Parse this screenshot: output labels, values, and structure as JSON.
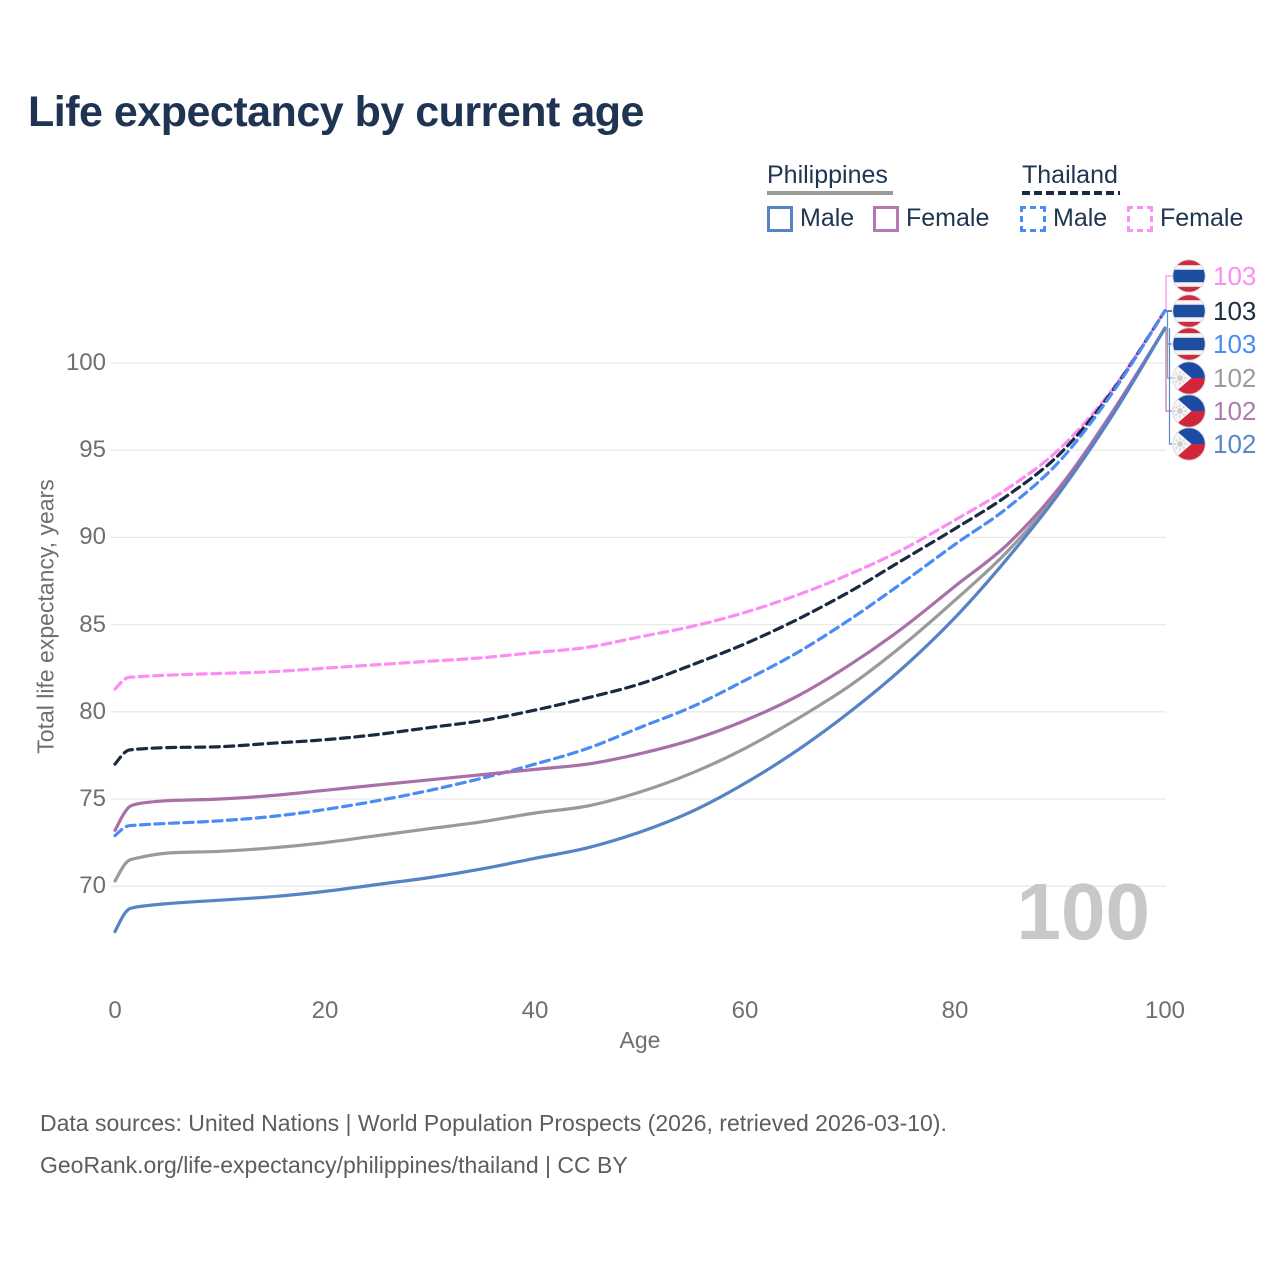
{
  "title": "Life expectancy by current age",
  "legend": {
    "philippines": {
      "label": "Philippines",
      "male": "Male",
      "female": "Female",
      "line_color": "#9a9a9a"
    },
    "thailand": {
      "label": "Thailand",
      "male": "Male",
      "female": "Female",
      "line_color": "#1b2a44"
    }
  },
  "axes": {
    "x": {
      "label": "Age",
      "ticks": [
        "0",
        "20",
        "40",
        "60",
        "80",
        "100"
      ]
    },
    "y": {
      "label": "Total life expectancy, years",
      "ticks": [
        "70",
        "75",
        "80",
        "85",
        "90",
        "95",
        "100"
      ]
    }
  },
  "watermark_age": "100",
  "end_labels": [
    {
      "value": "103",
      "country": "thailand",
      "series": "Thailand Female",
      "color": "#fb8df3"
    },
    {
      "value": "103",
      "country": "thailand",
      "series": "Thailand Both",
      "color": "#1e2c44"
    },
    {
      "value": "103",
      "country": "thailand",
      "series": "Thailand Male",
      "color": "#4a8cf3"
    },
    {
      "value": "102",
      "country": "philippines",
      "series": "Philippines Both",
      "color": "#9b9b9b"
    },
    {
      "value": "102",
      "country": "philippines",
      "series": "Philippines Female",
      "color": "#b07ab3"
    },
    {
      "value": "102",
      "country": "philippines",
      "series": "Philippines Male",
      "color": "#5b87c9"
    }
  ],
  "footer": {
    "line1": "Data sources: United Nations | World Population Prospects (2026, retrieved 2026-03-10).",
    "line2": "GeoRank.org/life-expectancy/philippines/thailand | CC BY"
  },
  "colors": {
    "title": "#1e3452",
    "tick_text": "#6f6f6f",
    "gridline": "#e9e9e9",
    "watermark": "#c9c7c7"
  },
  "chart_data": {
    "type": "line",
    "title": "Life expectancy by current age",
    "xlabel": "Age",
    "ylabel": "Total life expectancy, years",
    "xlim": [
      0,
      100
    ],
    "ylim": [
      66,
      104
    ],
    "grid": "horizontal-only",
    "legend_position": "top-right",
    "x": [
      0,
      1,
      2,
      5,
      10,
      15,
      20,
      25,
      30,
      35,
      40,
      45,
      50,
      55,
      60,
      65,
      70,
      75,
      80,
      85,
      90,
      95,
      100
    ],
    "series": [
      {
        "id": "thailand-female",
        "name": "Thailand Female",
        "country": "Thailand",
        "sex": "female",
        "color": "#fb8df3",
        "dashed": true,
        "values": [
          81.3,
          81.9,
          82.0,
          82.1,
          82.2,
          82.3,
          82.5,
          82.7,
          82.9,
          83.1,
          83.4,
          83.7,
          84.3,
          84.9,
          85.7,
          86.7,
          87.9,
          89.3,
          91.0,
          92.8,
          95.1,
          98.5,
          103
        ]
      },
      {
        "id": "thailand-both",
        "name": "Thailand Both sexes",
        "country": "Thailand",
        "sex": "both",
        "color": "#1b2a44",
        "dashed": true,
        "values": [
          77.0,
          77.7,
          77.85,
          77.95,
          78.0,
          78.2,
          78.4,
          78.7,
          79.1,
          79.5,
          80.1,
          80.8,
          81.6,
          82.7,
          83.9,
          85.3,
          86.9,
          88.7,
          90.5,
          92.4,
          94.8,
          98.4,
          103
        ]
      },
      {
        "id": "thailand-male",
        "name": "Thailand Male",
        "country": "Thailand",
        "sex": "male",
        "color": "#4a8cf3",
        "dashed": true,
        "values": [
          72.9,
          73.4,
          73.5,
          73.6,
          73.75,
          74.0,
          74.4,
          74.9,
          75.5,
          76.2,
          77.0,
          77.9,
          79.1,
          80.3,
          81.8,
          83.4,
          85.3,
          87.4,
          89.6,
          91.7,
          94.4,
          98.3,
          103
        ]
      },
      {
        "id": "philippines-both",
        "name": "Philippines Both sexes",
        "country": "Philippines",
        "sex": "both",
        "color": "#9a9a9a",
        "dashed": false,
        "values": [
          70.3,
          71.3,
          71.6,
          71.9,
          72.0,
          72.2,
          72.5,
          72.9,
          73.3,
          73.7,
          74.2,
          74.6,
          75.4,
          76.5,
          77.9,
          79.6,
          81.5,
          83.8,
          86.4,
          89.2,
          92.7,
          97.1,
          102
        ]
      },
      {
        "id": "philippines-female",
        "name": "Philippines Female",
        "country": "Philippines",
        "sex": "female",
        "color": "#a96fa9",
        "dashed": false,
        "values": [
          73.2,
          74.3,
          74.7,
          74.9,
          75.0,
          75.2,
          75.5,
          75.8,
          76.1,
          76.4,
          76.7,
          77.0,
          77.6,
          78.4,
          79.5,
          80.9,
          82.7,
          84.8,
          87.2,
          89.6,
          92.9,
          97.2,
          102
        ]
      },
      {
        "id": "philippines-male",
        "name": "Philippines Male",
        "country": "Philippines",
        "sex": "male",
        "color": "#5583c4",
        "dashed": false,
        "values": [
          67.4,
          68.5,
          68.8,
          69.0,
          69.2,
          69.4,
          69.7,
          70.1,
          70.5,
          71.0,
          71.6,
          72.2,
          73.1,
          74.3,
          75.9,
          77.8,
          80.0,
          82.5,
          85.4,
          88.8,
          92.6,
          97.0,
          102
        ]
      }
    ]
  }
}
